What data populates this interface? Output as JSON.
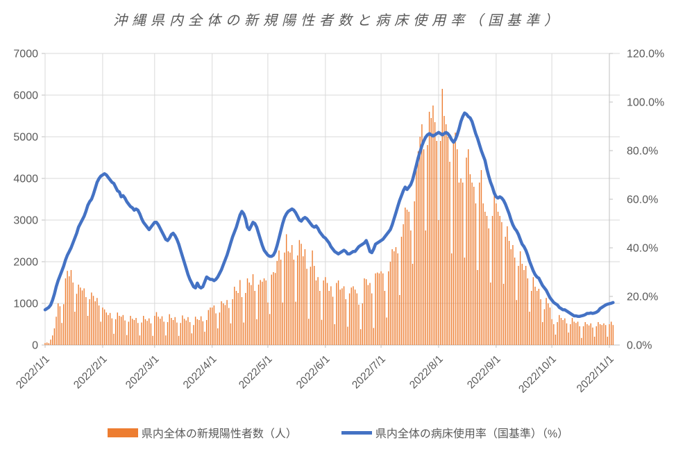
{
  "title": "沖縄県内全体の新規陽性者数と病床使用率（国基準）",
  "legend": [
    {
      "label": "県内全体の新規陽性者数（人）",
      "color": "#ED7D31",
      "type": "bar"
    },
    {
      "label": "県内全体の病床使用率（国基準）（%）",
      "color": "#4472C4",
      "type": "line"
    }
  ],
  "colors": {
    "bars": "#ED7D31",
    "line": "#4472C4",
    "gridline": "#D9D9D9",
    "axis_line": "#BFBFBF",
    "text": "#595959",
    "background": "#FFFFFF"
  },
  "chart_data": {
    "type": "bar+line-combo",
    "title": "沖縄県内全体の新規陽性者数と病床使用率（国基準）",
    "start_date": "2022/1/1",
    "end_date": "2022/11/3",
    "grid": "both",
    "legend_position": "bottom",
    "left_axis": {
      "min": 0,
      "max": 7000,
      "step": 1000,
      "ticks": [
        "0",
        "1000",
        "2000",
        "3000",
        "4000",
        "5000",
        "6000",
        "7000"
      ]
    },
    "right_axis": {
      "min": 0,
      "max": 120,
      "step": 20,
      "ticks": [
        "0.0%",
        "20.0%",
        "40.0%",
        "60.0%",
        "80.0%",
        "100.0%",
        "120.0%"
      ]
    },
    "x_tick_labels": [
      "2022/1/1",
      "2022/2/1",
      "2022/3/1",
      "2022/4/1",
      "2022/5/1",
      "2022/6/1",
      "2022/7/1",
      "2022/8/1",
      "2022/9/1",
      "2022/10/1",
      "2022/11/1"
    ],
    "x_tick_day_index": [
      0,
      31,
      59,
      90,
      120,
      151,
      181,
      212,
      243,
      273,
      304
    ],
    "series": [
      {
        "name": "県内全体の新規陽性者数（人）",
        "type": "bar",
        "axis": "left",
        "color": "#ED7D31",
        "values": [
          50,
          60,
          45,
          130,
          230,
          400,
          680,
          1000,
          930,
          530,
          980,
          1600,
          1780,
          1650,
          1800,
          1500,
          800,
          1230,
          1450,
          1380,
          1310,
          1360,
          1150,
          700,
          1100,
          1260,
          1180,
          1050,
          1130,
          950,
          560,
          900,
          855,
          780,
          720,
          770,
          640,
          270,
          620,
          780,
          700,
          680,
          720,
          590,
          240,
          560,
          700,
          630,
          600,
          650,
          530,
          230,
          540,
          700,
          620,
          580,
          640,
          520,
          220,
          700,
          790,
          680,
          630,
          690,
          560,
          230,
          550,
          740,
          650,
          600,
          670,
          540,
          220,
          530,
          710,
          630,
          590,
          670,
          550,
          280,
          480,
          680,
          620,
          600,
          690,
          570,
          320,
          600,
          840,
          900,
          900,
          950,
          760,
          400,
          780,
          1050,
          1000,
          960,
          1080,
          890,
          520,
          1100,
          1400,
          1300,
          1250,
          1560,
          1150,
          540,
          1250,
          1600,
          1500,
          1440,
          1700,
          1300,
          620,
          1450,
          1560,
          1520,
          1600,
          1550,
          1020,
          745,
          1690,
          1750,
          1730,
          2020,
          2270,
          2050,
          1020,
          2220,
          2660,
          2250,
          2220,
          2400,
          2050,
          1040,
          2150,
          2520,
          2430,
          2130,
          2300,
          1830,
          630,
          1880,
          2270,
          1900,
          1550,
          1630,
          1300,
          605,
          1550,
          1630,
          1490,
          1300,
          1410,
          1160,
          500,
          1490,
          1550,
          1330,
          1360,
          1410,
          1100,
          440,
          1240,
          1380,
          1410,
          1330,
          1240,
          970,
          380,
          1000,
          1600,
          1580,
          1440,
          1490,
          1240,
          410,
          1720,
          1740,
          1720,
          1770,
          1720,
          1300,
          660,
          1770,
          2000,
          2300,
          2250,
          2350,
          2200,
          1200,
          2600,
          2900,
          3300,
          3250,
          3200,
          2750,
          1950,
          3450,
          4200,
          4650,
          5000,
          5300,
          4700,
          2750,
          4800,
          5600,
          5450,
          5750,
          5350,
          4900,
          3000,
          4900,
          6150,
          5500,
          5300,
          5000,
          4400,
          2200,
          4900,
          5100,
          4700,
          3900,
          4000,
          3900,
          2100,
          4500,
          4700,
          4100,
          3900,
          3800,
          3400,
          1800,
          3900,
          4200,
          3400,
          3200,
          3100,
          2800,
          1500,
          3100,
          3600,
          3400,
          3200,
          3100,
          2950,
          1470,
          2600,
          2850,
          2500,
          2300,
          2400,
          2100,
          1080,
          1900,
          2250,
          1950,
          1800,
          1900,
          1600,
          800,
          1300,
          1630,
          1400,
          1300,
          1350,
          1100,
          550,
          860,
          1130,
          1000,
          900,
          620,
          500,
          250,
          550,
          720,
          650,
          600,
          640,
          520,
          300,
          500,
          650,
          560,
          530,
          560,
          450,
          170,
          450,
          550,
          500,
          470,
          520,
          420,
          200,
          450,
          550,
          500,
          480,
          520,
          480,
          200,
          500,
          560,
          480
        ]
      },
      {
        "name": "県内全体の病床使用率（国基準）（%）",
        "type": "line",
        "axis": "right",
        "color": "#4472C4",
        "values": [
          14.5,
          15,
          15.5,
          16.5,
          18.5,
          21,
          24,
          26.5,
          28.5,
          30.5,
          32.5,
          35,
          37,
          38.5,
          40,
          42,
          44,
          46,
          48.5,
          50,
          51.5,
          53,
          55,
          57.5,
          59,
          60,
          62,
          64.5,
          67,
          68.5,
          69.5,
          70,
          70.5,
          70,
          69,
          68,
          67,
          66.5,
          65,
          63.5,
          63,
          61,
          61.5,
          60.5,
          59,
          58,
          57,
          56.5,
          55.5,
          56,
          55.5,
          54,
          52,
          50.5,
          49.5,
          48.5,
          47.5,
          48.5,
          49.5,
          50.5,
          50.5,
          49.5,
          48,
          46.5,
          45,
          43.5,
          43,
          44,
          45.5,
          46,
          45,
          43.5,
          41.5,
          39,
          36.5,
          34,
          31.5,
          29,
          27,
          25.5,
          24,
          23.5,
          25.5,
          24,
          23.5,
          24,
          26,
          28,
          27.5,
          27,
          27,
          26.5,
          27,
          28,
          29.5,
          31,
          33,
          35,
          37,
          39.5,
          42,
          44.5,
          46.5,
          48.5,
          51,
          53.5,
          55,
          54,
          52,
          48.5,
          47.5,
          49,
          50.5,
          50,
          48.5,
          46,
          43.5,
          41,
          39,
          38,
          37,
          36.5,
          36.5,
          37,
          38.5,
          41,
          44,
          47,
          50,
          52.5,
          54,
          55,
          55.5,
          56,
          55.5,
          54.5,
          53,
          51.5,
          51,
          52,
          52.5,
          52,
          51,
          50,
          49,
          48.5,
          49,
          48,
          46.5,
          45.5,
          44.5,
          44,
          43,
          42,
          40.5,
          39.5,
          38.5,
          38,
          37.5,
          38,
          38.5,
          39,
          38.5,
          37.5,
          37.5,
          38,
          38.5,
          38.5,
          39.5,
          40.5,
          41,
          41.5,
          42,
          43,
          41,
          38.5,
          38,
          39.5,
          41.5,
          42,
          42.5,
          43,
          43.5,
          44.5,
          45.5,
          46.5,
          47.5,
          49.5,
          52,
          54.5,
          57,
          59.5,
          61.5,
          63.5,
          65,
          64,
          65,
          66,
          68,
          71,
          74,
          77,
          79.5,
          82,
          84,
          85.5,
          86.5,
          87,
          86.5,
          86,
          86.5,
          87,
          87.5,
          87,
          86.5,
          87,
          87.5,
          87,
          86,
          84.5,
          83.5,
          84.5,
          86.5,
          89,
          92,
          94,
          95.5,
          95,
          94,
          93.5,
          92,
          89.5,
          87,
          85,
          82.5,
          80,
          78,
          76,
          72.5,
          69.5,
          67,
          65,
          62.5,
          61,
          60.5,
          61,
          60.5,
          59.5,
          58,
          56,
          54,
          51.5,
          49.5,
          48,
          47,
          45.5,
          43.5,
          41.5,
          40.5,
          39,
          37,
          34.5,
          32.5,
          30.5,
          29,
          28,
          27.5,
          26,
          24.5,
          23.5,
          22.5,
          21,
          19.5,
          18.5,
          17.5,
          17,
          16.5,
          15.5,
          15,
          14.5,
          14.5,
          14,
          13.5,
          13,
          12.5,
          12,
          12,
          11.8,
          11.8,
          12,
          12.2,
          12.5,
          13,
          13,
          13.2,
          13,
          13.2,
          13.5,
          14,
          15,
          15.5,
          16,
          16.5,
          16.8,
          17,
          17.2,
          17.5
        ]
      }
    ]
  }
}
